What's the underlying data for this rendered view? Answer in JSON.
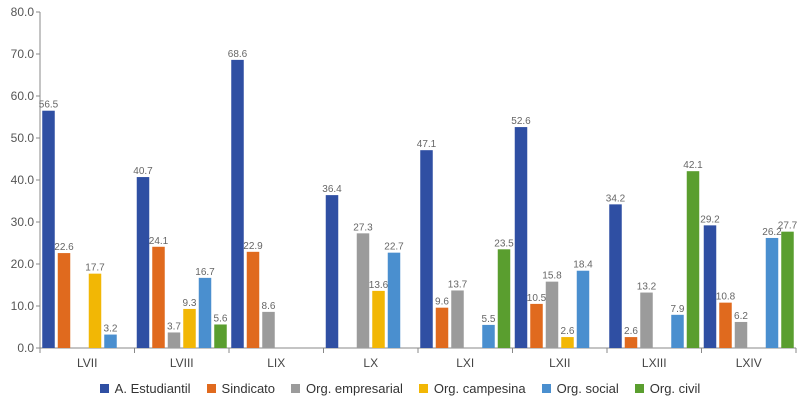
{
  "chart_data": {
    "type": "bar",
    "title": "",
    "xlabel": "",
    "ylabel": "",
    "ylim": [
      0,
      80
    ],
    "yticks": [
      "0.0",
      "10.0",
      "20.0",
      "30.0",
      "40.0",
      "50.0",
      "60.0",
      "70.0",
      "80.0"
    ],
    "grid": false,
    "legend_position": "bottom",
    "categories": [
      "LVII",
      "LVIII",
      "LIX",
      "LX",
      "LXI",
      "LXII",
      "LXIII",
      "LXIV"
    ],
    "series": [
      {
        "name": "A. Estudiantil",
        "color": "#2f4fa3",
        "values": [
          56.5,
          40.7,
          68.6,
          36.4,
          47.1,
          52.6,
          34.2,
          29.2
        ]
      },
      {
        "name": "Sindicato",
        "color": "#e06a1e",
        "values": [
          22.6,
          24.1,
          22.9,
          null,
          9.6,
          10.5,
          2.6,
          10.8
        ]
      },
      {
        "name": "Org. empresarial",
        "color": "#9b9b9b",
        "values": [
          null,
          3.7,
          8.6,
          27.3,
          13.7,
          15.8,
          13.2,
          6.2
        ]
      },
      {
        "name": "Org. campesina",
        "color": "#f2b705",
        "values": [
          17.7,
          9.3,
          null,
          13.6,
          null,
          2.6,
          null,
          null
        ]
      },
      {
        "name": "Org. social",
        "color": "#4a8fcf",
        "values": [
          3.2,
          16.7,
          null,
          22.7,
          5.5,
          18.4,
          7.9,
          26.2
        ]
      },
      {
        "name": "Org. civil",
        "color": "#5a9e2f",
        "values": [
          null,
          5.6,
          null,
          null,
          23.5,
          null,
          42.1,
          27.7
        ]
      }
    ]
  }
}
